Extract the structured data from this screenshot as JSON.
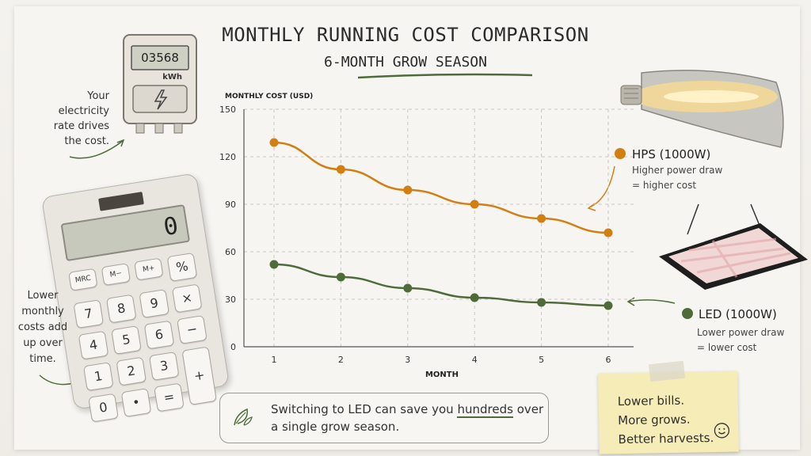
{
  "title": "MONTHLY RUNNING COST COMPARISON",
  "subtitle": "6-MONTH GROW SEASON",
  "meter": {
    "reading": "03568",
    "unit": "kWh"
  },
  "calculator": {
    "display": "0",
    "keys": [
      "MRC",
      "M−",
      "M+",
      "%",
      "7",
      "8",
      "9",
      "×",
      "4",
      "5",
      "6",
      "−",
      "1",
      "2",
      "3",
      "+",
      "0",
      "•",
      "="
    ]
  },
  "notes": {
    "rate": [
      "Your electricity",
      "rate drives",
      "the cost."
    ],
    "lower": [
      "Lower",
      "monthly",
      "costs add",
      "up over",
      "time."
    ]
  },
  "callout": {
    "line1_before": "Switching to LED can save you ",
    "line1_emph": "hundreds",
    "line1_after": " over",
    "line2": "a single grow season."
  },
  "sticky": [
    "Lower bills.",
    "More grows.",
    "Better harvests."
  ],
  "chart_data": {
    "type": "line",
    "ylabel": "MONTHLY COST (USD)",
    "xlabel": "MONTH",
    "x": [
      1,
      2,
      3,
      4,
      5,
      6
    ],
    "ylim": [
      0,
      150
    ],
    "yticks": [
      0,
      30,
      60,
      90,
      120,
      150
    ],
    "grid": true,
    "series": [
      {
        "name": "HPS (1000W)",
        "annotation": [
          "Higher power draw",
          "= higher cost"
        ],
        "color": "#d27f12",
        "values": [
          129,
          112,
          99,
          90,
          81,
          72
        ]
      },
      {
        "name": "LED (1000W)",
        "annotation": [
          "Lower power draw",
          "= lower cost"
        ],
        "color": "#4f6b3a",
        "values": [
          52,
          44,
          37,
          31,
          28,
          26
        ]
      }
    ]
  }
}
